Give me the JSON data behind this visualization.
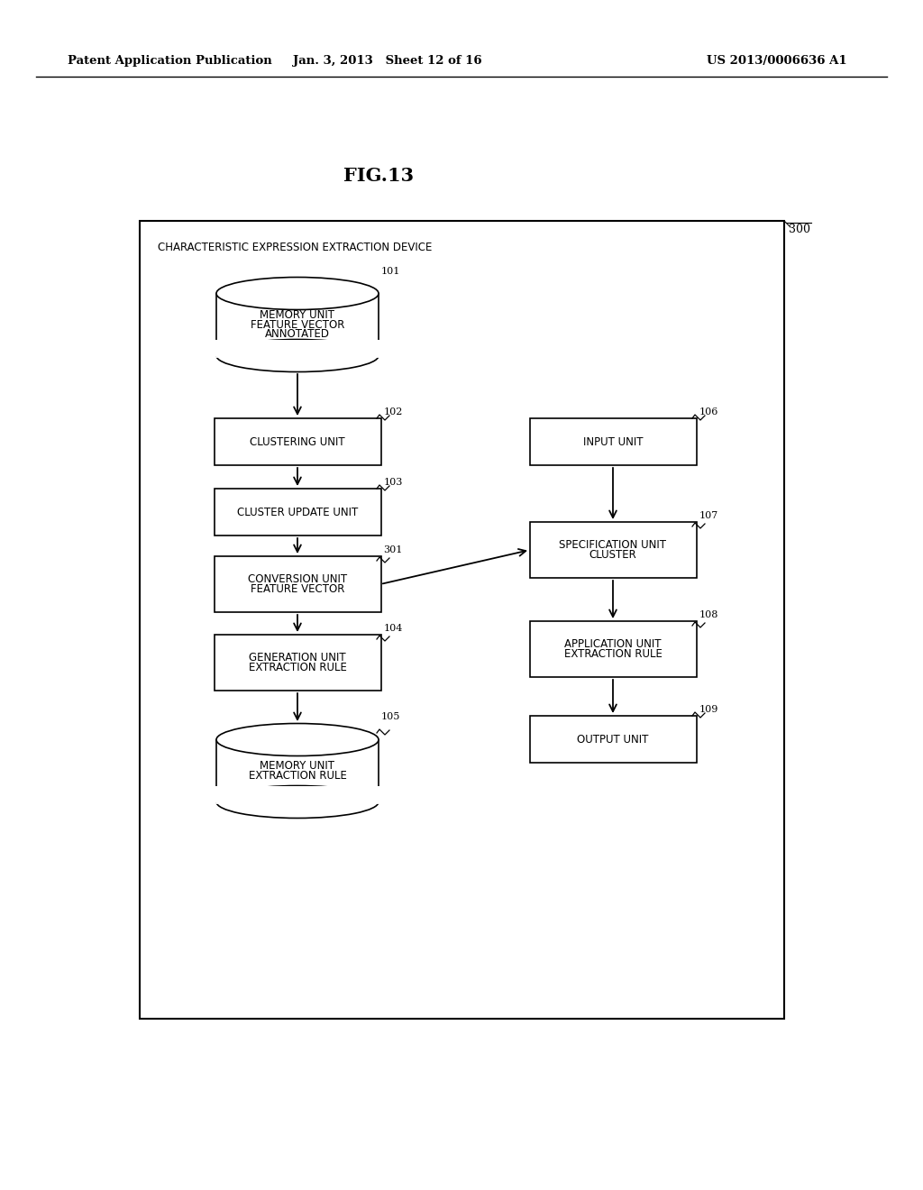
{
  "bg_color": "#ffffff",
  "header_left": "Patent Application Publication",
  "header_center": "Jan. 3, 2013   Sheet 12 of 16",
  "header_right": "US 2013/0006636 A1",
  "fig_label": "FIG.13"
}
